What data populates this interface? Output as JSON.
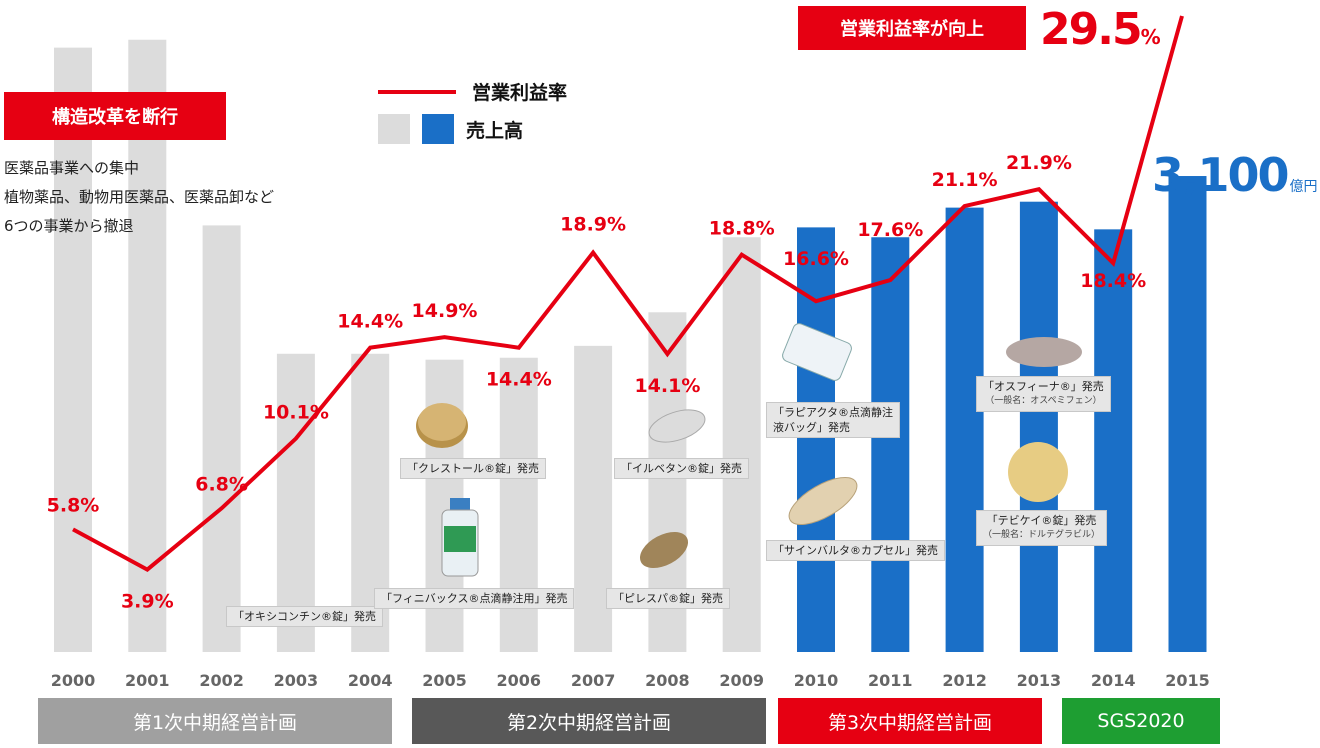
{
  "chart_data": {
    "type": "bar+line",
    "categories": [
      "2000",
      "2001",
      "2002",
      "2003",
      "2004",
      "2005",
      "2006",
      "2007",
      "2008",
      "2009",
      "2010",
      "2011",
      "2012",
      "2013",
      "2014",
      "2015"
    ],
    "bar_series": {
      "name": "売上高",
      "values": [
        3060,
        3100,
        2160,
        1510,
        1510,
        1480,
        1490,
        1550,
        1720,
        2100,
        2150,
        2100,
        2250,
        2280,
        2140,
        2410
      ],
      "colors": [
        "#dcdcdc",
        "#dcdcdc",
        "#dcdcdc",
        "#dcdcdc",
        "#dcdcdc",
        "#dcdcdc",
        "#dcdcdc",
        "#dcdcdc",
        "#dcdcdc",
        "#dcdcdc",
        "#1a6fc7",
        "#1a6fc7",
        "#1a6fc7",
        "#1a6fc7",
        "#1a6fc7",
        "#1a6fc7"
      ]
    },
    "line_series": {
      "name": "営業利益率",
      "color": "#e60012",
      "values": [
        5.8,
        3.9,
        6.8,
        10.1,
        14.4,
        14.9,
        14.4,
        18.9,
        14.1,
        18.8,
        16.6,
        17.6,
        21.1,
        21.9,
        18.4,
        29.5
      ],
      "labels": [
        "5.8%",
        "3.9%",
        "6.8%",
        "10.1%",
        "14.4%",
        "14.9%",
        "14.4%",
        "18.9%",
        "14.1%",
        "18.8%",
        "16.6%",
        "17.6%",
        "21.1%",
        "21.9%",
        "18.4%",
        ""
      ]
    },
    "ylim_bars": [
      0,
      3200
    ],
    "ylim_line": [
      0,
      30
    ],
    "legend": "top-center",
    "grid": false
  },
  "legend": {
    "line_label": "営業利益率",
    "bar_label": "売上高",
    "gray": "#dcdcdc",
    "blue": "#1a6fc7"
  },
  "badges": {
    "reform": "構造改革を断行",
    "profit_up": "営業利益率が向上"
  },
  "notes": [
    "医薬品事業への集中",
    "植物薬品、動物用医薬品、医薬品卸など",
    "6つの事業から撤退"
  ],
  "peak": {
    "value": "29.5",
    "unit": "%"
  },
  "total": {
    "value": "3,100",
    "unit": "億円"
  },
  "plans": [
    {
      "label": "第1次中期経営計画",
      "color": "#a0a0a0"
    },
    {
      "label": "第2次中期経営計画",
      "color": "#585858"
    },
    {
      "label": "第3次中期経営計画",
      "color": "#e60012"
    },
    {
      "label": "SGS2020",
      "color": "#1e9e32"
    }
  ],
  "products": {
    "oxycontin": "「オキシコンチン®錠」発売",
    "crestor": "「クレストール®錠」発売",
    "finibax": "「フィニバックス®点滴静注用」発売",
    "irbetan": "「イルベタン®錠」発売",
    "pirespa": "「ピレスパ®錠」発売",
    "rapiacta": [
      "「ラピアクタ®点滴静注",
      "液バッグ」発売"
    ],
    "cymbalta": "「サインバルタ®カプセル」発売",
    "osphena": "「オスフィーナ®」発売",
    "osphena_sub": "（一般名：オスペミフェン）",
    "tivicay": "「テビケイ®錠」発売",
    "tivicay_sub": "（一般名：ドルテグラビル）"
  }
}
